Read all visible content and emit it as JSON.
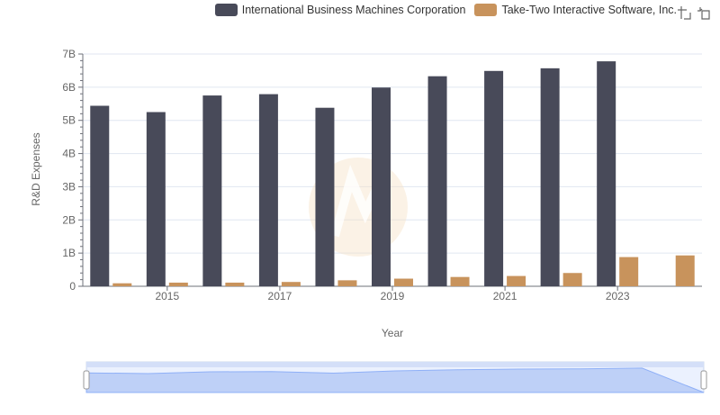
{
  "legend": {
    "series_0": "International Business Machines Corporation",
    "series_1": "Take-Two Interactive Software, Inc."
  },
  "toolbox": {
    "zoom_icon": "zoom-icon",
    "restore_icon": "restore-icon"
  },
  "chart_data": {
    "type": "bar",
    "title": "",
    "xlabel": "Year",
    "ylabel": "R&D Expenses",
    "ylim": [
      0,
      7000000000
    ],
    "yticks": [
      "0",
      "1B",
      "2B",
      "3B",
      "4B",
      "5B",
      "6B",
      "7B"
    ],
    "xtick_labels": [
      "2015",
      "2017",
      "2019",
      "2021",
      "2023"
    ],
    "categories": [
      "2014",
      "2015",
      "2016",
      "2017",
      "2018",
      "2019",
      "2020",
      "2021",
      "2022",
      "2023",
      "2024"
    ],
    "series": [
      {
        "name": "International Business Machines Corporation",
        "color": "#484a59",
        "values": [
          5440000000,
          5250000000,
          5750000000,
          5790000000,
          5380000000,
          5990000000,
          6330000000,
          6490000000,
          6570000000,
          6780000000,
          null
        ]
      },
      {
        "name": "Take-Two Interactive Software, Inc.",
        "color": "#c8935c",
        "values": [
          90000000,
          110000000,
          110000000,
          130000000,
          180000000,
          230000000,
          280000000,
          310000000,
          400000000,
          880000000,
          930000000
        ]
      }
    ],
    "grid": true,
    "legend_position": "top-right"
  }
}
